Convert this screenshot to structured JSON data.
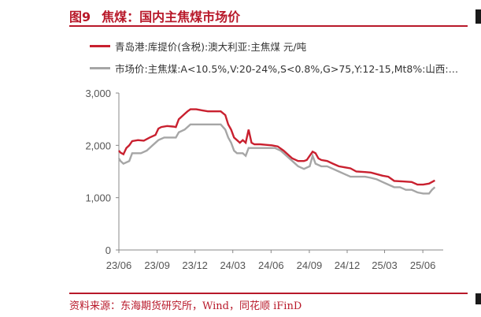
{
  "header": {
    "figure_no": "图9",
    "title": "焦煤：国内主焦煤市场价"
  },
  "source": "资料来源：东海期货研究所，Wind，同花顺 iFinD",
  "colors": {
    "accent": "#b8192a",
    "series_red": "#c9202f",
    "series_gray": "#a6a6a6",
    "axis": "#888888",
    "text": "#555555"
  },
  "chart_data": {
    "type": "line",
    "title": "焦煤：国内主焦煤市场价",
    "xlabel": "",
    "ylabel": "",
    "ylim": [
      0,
      3000
    ],
    "yticks": [
      0,
      1000,
      2000,
      3000
    ],
    "ytick_labels": [
      "0",
      "1,000",
      "2,000",
      "3,000"
    ],
    "xticks": [
      "23/06",
      "23/09",
      "23/12",
      "24/03",
      "24/06",
      "24/09",
      "24/12",
      "25/03",
      "25/06"
    ],
    "x_range": [
      "2023-06",
      "2025-07"
    ],
    "legend_position": "top-left",
    "series": [
      {
        "name": "青岛港:库提价(含税):澳大利亚:主焦煤 元/吨",
        "color": "#c9202f",
        "points": [
          [
            "2023-06-01",
            1900
          ],
          [
            "2023-06-05",
            1860
          ],
          [
            "2023-06-12",
            1830
          ],
          [
            "2023-06-19",
            1950
          ],
          [
            "2023-06-26",
            2000
          ],
          [
            "2023-07-03",
            2080
          ],
          [
            "2023-07-17",
            2100
          ],
          [
            "2023-07-31",
            2090
          ],
          [
            "2023-08-14",
            2150
          ],
          [
            "2023-08-28",
            2200
          ],
          [
            "2023-09-04",
            2320
          ],
          [
            "2023-09-11",
            2350
          ],
          [
            "2023-09-25",
            2370
          ],
          [
            "2023-10-09",
            2360
          ],
          [
            "2023-10-16",
            2350
          ],
          [
            "2023-10-23",
            2500
          ],
          [
            "2023-11-06",
            2600
          ],
          [
            "2023-11-13",
            2650
          ],
          [
            "2023-11-20",
            2690
          ],
          [
            "2023-12-04",
            2690
          ],
          [
            "2023-12-18",
            2670
          ],
          [
            "2024-01-01",
            2650
          ],
          [
            "2024-01-15",
            2650
          ],
          [
            "2024-02-01",
            2650
          ],
          [
            "2024-02-12",
            2580
          ],
          [
            "2024-02-19",
            2400
          ],
          [
            "2024-02-26",
            2300
          ],
          [
            "2024-03-04",
            2150
          ],
          [
            "2024-03-11",
            2100
          ],
          [
            "2024-03-18",
            2050
          ],
          [
            "2024-03-25",
            2100
          ],
          [
            "2024-04-01",
            2050
          ],
          [
            "2024-04-08",
            2300
          ],
          [
            "2024-04-15",
            2050
          ],
          [
            "2024-04-22",
            2020
          ],
          [
            "2024-05-06",
            2020
          ],
          [
            "2024-05-20",
            2010
          ],
          [
            "2024-06-03",
            2000
          ],
          [
            "2024-06-17",
            1980
          ],
          [
            "2024-07-01",
            1900
          ],
          [
            "2024-07-15",
            1800
          ],
          [
            "2024-07-22",
            1750
          ],
          [
            "2024-08-05",
            1700
          ],
          [
            "2024-08-19",
            1700
          ],
          [
            "2024-08-26",
            1720
          ],
          [
            "2024-09-02",
            1800
          ],
          [
            "2024-09-09",
            1880
          ],
          [
            "2024-09-16",
            1850
          ],
          [
            "2024-09-23",
            1750
          ],
          [
            "2024-09-30",
            1720
          ],
          [
            "2024-10-14",
            1700
          ],
          [
            "2024-10-28",
            1650
          ],
          [
            "2024-11-11",
            1600
          ],
          [
            "2024-11-25",
            1580
          ],
          [
            "2024-12-09",
            1560
          ],
          [
            "2024-12-23",
            1500
          ],
          [
            "2025-01-13",
            1490
          ],
          [
            "2025-01-27",
            1480
          ],
          [
            "2025-02-10",
            1450
          ],
          [
            "2025-02-24",
            1420
          ],
          [
            "2025-03-10",
            1400
          ],
          [
            "2025-03-24",
            1320
          ],
          [
            "2025-04-14",
            1310
          ],
          [
            "2025-05-05",
            1300
          ],
          [
            "2025-05-19",
            1250
          ],
          [
            "2025-06-02",
            1250
          ],
          [
            "2025-06-16",
            1270
          ],
          [
            "2025-06-23",
            1300
          ],
          [
            "2025-06-30",
            1330
          ]
        ]
      },
      {
        "name": "市场价:主焦煤:A<10.5%,V:20-24%,S<0.8%,G>75,Y:12-15,Mt8%:山西:吕...",
        "color": "#a6a6a6",
        "points": [
          [
            "2023-06-01",
            1750
          ],
          [
            "2023-06-05",
            1700
          ],
          [
            "2023-06-12",
            1650
          ],
          [
            "2023-06-26",
            1700
          ],
          [
            "2023-07-03",
            1850
          ],
          [
            "2023-07-24",
            1850
          ],
          [
            "2023-08-07",
            1900
          ],
          [
            "2023-08-21",
            2000
          ],
          [
            "2023-09-04",
            2100
          ],
          [
            "2023-09-18",
            2150
          ],
          [
            "2023-10-02",
            2150
          ],
          [
            "2023-10-16",
            2150
          ],
          [
            "2023-10-23",
            2250
          ],
          [
            "2023-11-06",
            2300
          ],
          [
            "2023-11-13",
            2350
          ],
          [
            "2023-11-20",
            2400
          ],
          [
            "2023-12-04",
            2400
          ],
          [
            "2024-01-01",
            2400
          ],
          [
            "2024-02-01",
            2400
          ],
          [
            "2024-02-12",
            2300
          ],
          [
            "2024-02-19",
            2150
          ],
          [
            "2024-02-26",
            2050
          ],
          [
            "2024-03-04",
            1900
          ],
          [
            "2024-03-11",
            1850
          ],
          [
            "2024-03-25",
            1850
          ],
          [
            "2024-04-01",
            1800
          ],
          [
            "2024-04-08",
            1950
          ],
          [
            "2024-04-15",
            1950
          ],
          [
            "2024-04-29",
            1950
          ],
          [
            "2024-05-13",
            1950
          ],
          [
            "2024-05-27",
            1950
          ],
          [
            "2024-06-10",
            1950
          ],
          [
            "2024-06-24",
            1900
          ],
          [
            "2024-07-08",
            1800
          ],
          [
            "2024-07-22",
            1700
          ],
          [
            "2024-08-05",
            1600
          ],
          [
            "2024-08-19",
            1550
          ],
          [
            "2024-09-02",
            1600
          ],
          [
            "2024-09-09",
            1800
          ],
          [
            "2024-09-16",
            1650
          ],
          [
            "2024-09-30",
            1600
          ],
          [
            "2024-10-14",
            1600
          ],
          [
            "2024-10-28",
            1550
          ],
          [
            "2024-11-11",
            1500
          ],
          [
            "2024-11-25",
            1450
          ],
          [
            "2024-12-09",
            1400
          ],
          [
            "2024-12-23",
            1400
          ],
          [
            "2025-01-13",
            1400
          ],
          [
            "2025-01-27",
            1380
          ],
          [
            "2025-02-10",
            1350
          ],
          [
            "2025-02-24",
            1300
          ],
          [
            "2025-03-10",
            1250
          ],
          [
            "2025-03-24",
            1200
          ],
          [
            "2025-04-07",
            1200
          ],
          [
            "2025-04-21",
            1150
          ],
          [
            "2025-05-05",
            1150
          ],
          [
            "2025-05-19",
            1100
          ],
          [
            "2025-06-02",
            1080
          ],
          [
            "2025-06-16",
            1080
          ],
          [
            "2025-06-23",
            1150
          ],
          [
            "2025-06-30",
            1200
          ]
        ]
      }
    ]
  }
}
